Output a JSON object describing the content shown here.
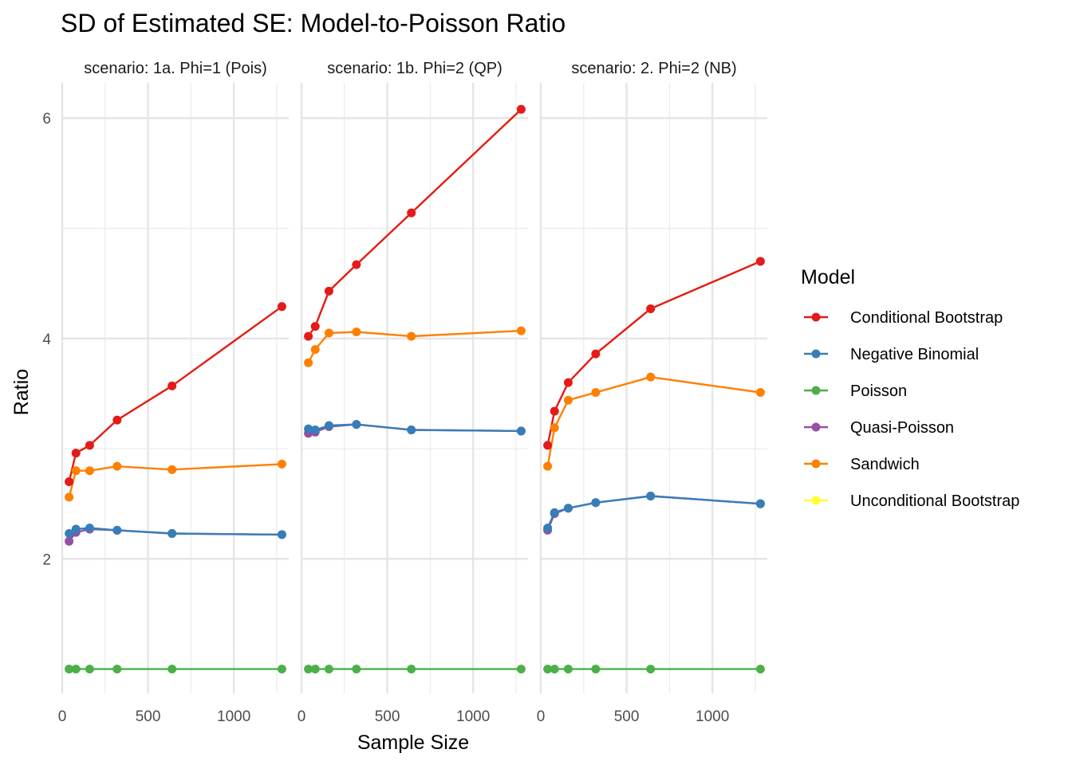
{
  "chart_data": {
    "type": "line",
    "title": "SD of Estimated SE: Model-to-Poisson Ratio",
    "xlabel": "Sample Size",
    "ylabel": "Ratio",
    "xlim": [
      0,
      1320
    ],
    "ylim": [
      0.78,
      6.32
    ],
    "x_ticks": [
      0,
      500,
      1000
    ],
    "x_tick_labels": [
      "0",
      "500",
      "1000"
    ],
    "y_ticks": [
      2,
      4,
      6
    ],
    "y_tick_labels": [
      "2",
      "4",
      "6"
    ],
    "grid": true,
    "legend": {
      "title": "Model",
      "position": "right",
      "entries": [
        {
          "label": "Conditional Bootstrap",
          "color": "#e41a1c"
        },
        {
          "label": "Negative Binomial",
          "color": "#377eb8"
        },
        {
          "label": "Poisson",
          "color": "#4daf4a"
        },
        {
          "label": "Quasi-Poisson",
          "color": "#984ea3"
        },
        {
          "label": "Sandwich",
          "color": "#ff7f00"
        },
        {
          "label": "Unconditional Bootstrap",
          "color": "#ffff33"
        }
      ]
    },
    "x": [
      40,
      80,
      160,
      320,
      640,
      1280
    ],
    "facets": [
      {
        "label": "scenario: 1a. Phi=1 (Pois)",
        "series": [
          {
            "name": "Unconditional Bootstrap",
            "color": "#ffff33",
            "values": [
              2.7,
              2.96,
              3.03,
              3.26,
              3.57,
              4.29
            ]
          },
          {
            "name": "Sandwich",
            "color": "#ff7f00",
            "values": [
              2.56,
              2.8,
              2.8,
              2.84,
              2.81,
              2.86
            ]
          },
          {
            "name": "Quasi-Poisson",
            "color": "#984ea3",
            "values": [
              2.16,
              2.24,
              2.27,
              2.26,
              2.23,
              2.22
            ]
          },
          {
            "name": "Negative Binomial",
            "color": "#377eb8",
            "values": [
              2.23,
              2.27,
              2.28,
              2.26,
              2.23,
              2.22
            ]
          },
          {
            "name": "Poisson",
            "color": "#4daf4a",
            "values": [
              1.0,
              1.0,
              1.0,
              1.0,
              1.0,
              1.0
            ]
          },
          {
            "name": "Conditional Bootstrap",
            "color": "#e41a1c",
            "values": [
              2.7,
              2.96,
              3.03,
              3.26,
              3.57,
              4.29
            ]
          }
        ]
      },
      {
        "label": "scenario: 1b. Phi=2 (QP)",
        "series": [
          {
            "name": "Unconditional Bootstrap",
            "color": "#ffff33",
            "values": [
              4.02,
              4.11,
              4.43,
              4.67,
              5.14,
              6.08
            ]
          },
          {
            "name": "Sandwich",
            "color": "#ff7f00",
            "values": [
              3.78,
              3.9,
              4.05,
              4.06,
              4.02,
              4.07
            ]
          },
          {
            "name": "Quasi-Poisson",
            "color": "#984ea3",
            "values": [
              3.14,
              3.15,
              3.2,
              3.22,
              3.17,
              3.16
            ]
          },
          {
            "name": "Negative Binomial",
            "color": "#377eb8",
            "values": [
              3.18,
              3.17,
              3.21,
              3.22,
              3.17,
              3.16
            ]
          },
          {
            "name": "Poisson",
            "color": "#4daf4a",
            "values": [
              1.0,
              1.0,
              1.0,
              1.0,
              1.0,
              1.0
            ]
          },
          {
            "name": "Conditional Bootstrap",
            "color": "#e41a1c",
            "values": [
              4.02,
              4.11,
              4.43,
              4.67,
              5.14,
              6.08
            ]
          }
        ]
      },
      {
        "label": "scenario: 2. Phi=2 (NB)",
        "series": [
          {
            "name": "Unconditional Bootstrap",
            "color": "#ffff33",
            "values": [
              3.03,
              3.34,
              3.6,
              3.86,
              4.27,
              4.7
            ]
          },
          {
            "name": "Sandwich",
            "color": "#ff7f00",
            "values": [
              2.84,
              3.19,
              3.44,
              3.51,
              3.65,
              3.51
            ]
          },
          {
            "name": "Quasi-Poisson",
            "color": "#984ea3",
            "values": [
              2.26,
              2.41,
              2.46,
              2.51,
              2.57,
              2.5
            ]
          },
          {
            "name": "Negative Binomial",
            "color": "#377eb8",
            "values": [
              2.28,
              2.42,
              2.46,
              2.51,
              2.57,
              2.5
            ]
          },
          {
            "name": "Poisson",
            "color": "#4daf4a",
            "values": [
              1.0,
              1.0,
              1.0,
              1.0,
              1.0,
              1.0
            ]
          },
          {
            "name": "Conditional Bootstrap",
            "color": "#e41a1c",
            "values": [
              3.03,
              3.34,
              3.6,
              3.86,
              4.27,
              4.7
            ]
          }
        ]
      }
    ]
  }
}
